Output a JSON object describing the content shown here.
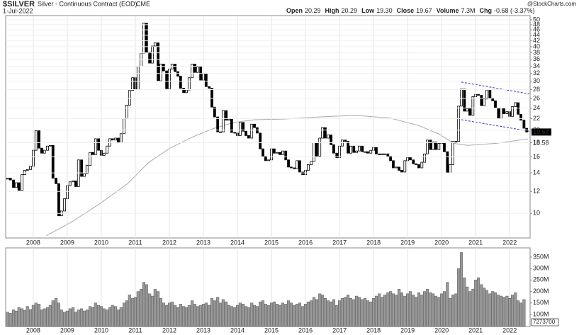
{
  "header": {
    "symbol": "$SILVER",
    "name": "Silver - Continuous Contract (EOD)",
    "exchange": "CME",
    "date": "1-Jul-2022",
    "source": "@StockCharts.com",
    "stats": [
      [
        "Open",
        "20.29"
      ],
      [
        "High",
        "20.29"
      ],
      [
        "Low",
        "19.30"
      ],
      [
        "Close",
        "19.67"
      ],
      [
        "Volume",
        "7.3M"
      ],
      [
        "Chg",
        "-0.68 (-3.37%)"
      ]
    ]
  },
  "chart_data": {
    "type": "candlestick",
    "log_scale": true,
    "grid": true,
    "xlim": [
      2007.19,
      2022.6
    ],
    "xticks": [
      2008,
      2009,
      2010,
      2011,
      2012,
      2013,
      2014,
      2015,
      2016,
      2017,
      2018,
      2019,
      2020,
      2021,
      2022
    ],
    "ylim": [
      8.15,
      51.8
    ],
    "yticks": [
      10,
      12,
      14,
      16,
      18,
      20,
      22,
      24,
      26,
      28,
      30,
      32,
      34,
      36,
      38,
      40,
      42,
      44,
      46,
      48,
      50
    ],
    "x": [
      2007.25,
      2007.33,
      2007.42,
      2007.5,
      2007.58,
      2007.67,
      2007.75,
      2007.83,
      2007.92,
      2008,
      2008.08,
      2008.17,
      2008.25,
      2008.33,
      2008.42,
      2008.5,
      2008.58,
      2008.67,
      2008.75,
      2008.83,
      2008.92,
      2009,
      2009.08,
      2009.17,
      2009.25,
      2009.33,
      2009.42,
      2009.5,
      2009.58,
      2009.67,
      2009.75,
      2009.83,
      2009.92,
      2010,
      2010.08,
      2010.17,
      2010.25,
      2010.33,
      2010.42,
      2010.5,
      2010.58,
      2010.67,
      2010.75,
      2010.83,
      2010.92,
      2011,
      2011.08,
      2011.17,
      2011.25,
      2011.33,
      2011.42,
      2011.5,
      2011.58,
      2011.67,
      2011.75,
      2011.83,
      2011.92,
      2012,
      2012.08,
      2012.17,
      2012.25,
      2012.33,
      2012.42,
      2012.5,
      2012.58,
      2012.67,
      2012.75,
      2012.83,
      2012.92,
      2013,
      2013.08,
      2013.17,
      2013.25,
      2013.33,
      2013.42,
      2013.5,
      2013.58,
      2013.67,
      2013.75,
      2013.83,
      2013.92,
      2014,
      2014.08,
      2014.17,
      2014.25,
      2014.33,
      2014.42,
      2014.5,
      2014.58,
      2014.67,
      2014.75,
      2014.83,
      2014.92,
      2015,
      2015.08,
      2015.17,
      2015.25,
      2015.33,
      2015.42,
      2015.5,
      2015.58,
      2015.67,
      2015.75,
      2015.83,
      2015.92,
      2016,
      2016.08,
      2016.17,
      2016.25,
      2016.33,
      2016.42,
      2016.5,
      2016.58,
      2016.67,
      2016.75,
      2016.83,
      2016.92,
      2017,
      2017.08,
      2017.17,
      2017.25,
      2017.33,
      2017.42,
      2017.5,
      2017.58,
      2017.67,
      2017.75,
      2017.83,
      2017.92,
      2018,
      2018.08,
      2018.17,
      2018.25,
      2018.33,
      2018.42,
      2018.5,
      2018.58,
      2018.67,
      2018.75,
      2018.83,
      2018.92,
      2019,
      2019.08,
      2019.17,
      2019.25,
      2019.33,
      2019.42,
      2019.5,
      2019.58,
      2019.67,
      2019.75,
      2019.83,
      2019.92,
      2020,
      2020.08,
      2020.17,
      2020.25,
      2020.33,
      2020.42,
      2020.5,
      2020.58,
      2020.67,
      2020.75,
      2020.83,
      2020.92,
      2021,
      2021.08,
      2021.17,
      2021.25,
      2021.33,
      2021.42,
      2021.5,
      2021.58,
      2021.67,
      2021.75,
      2021.83,
      2021.92,
      2022,
      2022.08,
      2022.17,
      2022.25,
      2022.33,
      2022.42,
      2022.5
    ],
    "open": [
      13.3,
      13.4,
      13.2,
      12.4,
      12.9,
      12.1,
      13.8,
      14.3,
      14.4,
      14.8,
      16.9,
      19.9,
      17.2,
      16.5,
      16.9,
      17.5,
      17.6,
      13.4,
      12.8,
      9.8,
      10.2,
      11.3,
      12.6,
      13.0,
      13.1,
      12.5,
      15.6,
      13.6,
      13.9,
      14.9,
      16.6,
      16.3,
      18.6,
      16.9,
      16.2,
      16.5,
      17.5,
      18.6,
      18.4,
      18.7,
      18.0,
      19.4,
      22.0,
      24.6,
      27.8,
      30.9,
      28.0,
      34.0,
      37.9,
      48.6,
      38.2,
      34.9,
      40.2,
      41.3,
      30.1,
      34.6,
      32.7,
      28.2,
      33.2,
      34.6,
      32.5,
      31.3,
      28.3,
      27.3,
      27.9,
      30.9,
      34.6,
      32.3,
      33.8,
      30.3,
      31.9,
      28.7,
      28.3,
      24.2,
      22.3,
      19.7,
      19.7,
      23.5,
      21.7,
      21.9,
      19.6,
      19.5,
      19.1,
      21.3,
      19.8,
      19.1,
      18.7,
      21.0,
      20.4,
      19.5,
      17.1,
      16.1,
      15.5,
      15.6,
      17.1,
      16.5,
      16.6,
      16.3,
      16.8,
      15.6,
      14.7,
      14.6,
      14.5,
      15.5,
      14.1,
      13.8,
      14.3,
      15.0,
      15.4,
      18.0,
      16.1,
      18.7,
      20.4,
      18.7,
      19.2,
      17.7,
      16.5,
      15.9,
      17.5,
      18.4,
      18.2,
      16.5,
      17.5,
      16.6,
      16.8,
      17.5,
      16.7,
      16.7,
      16.5,
      16.9,
      17.3,
      16.4,
      16.3,
      16.4,
      16.4,
      16.1,
      15.5,
      14.6,
      14.7,
      14.3,
      14.1,
      15.5,
      15.9,
      15.6,
      15.1,
      15.0,
      14.6,
      15.3,
      16.4,
      18.4,
      17.0,
      18.1,
      17.0,
      17.9,
      18.0,
      16.7,
      14.0,
      15.0,
      18.2,
      18.2,
      24.4,
      28.1,
      23.4,
      23.9,
      22.6,
      26.4,
      26.9,
      26.7,
      24.5,
      25.9,
      27.9,
      26.1,
      25.5,
      24.0,
      22.0,
      24.0,
      22.9,
      23.3,
      22.4,
      24.3,
      25.1,
      22.8,
      21.7,
      20.29
    ],
    "close": [
      13.4,
      13.2,
      12.4,
      12.9,
      12.1,
      13.8,
      14.3,
      14.4,
      14.8,
      16.9,
      19.9,
      17.2,
      16.5,
      16.9,
      17.5,
      17.6,
      13.4,
      12.8,
      9.8,
      10.2,
      11.3,
      12.6,
      13.0,
      13.1,
      12.5,
      15.6,
      13.6,
      13.9,
      14.9,
      16.6,
      16.3,
      18.6,
      16.9,
      16.2,
      16.5,
      17.5,
      18.6,
      18.4,
      18.7,
      18.0,
      19.4,
      22.0,
      24.6,
      27.8,
      30.9,
      28.0,
      34.0,
      37.9,
      48.6,
      38.2,
      34.9,
      40.2,
      41.3,
      30.1,
      34.6,
      32.7,
      28.2,
      33.2,
      34.6,
      32.5,
      31.3,
      28.3,
      27.3,
      27.9,
      30.9,
      34.6,
      32.3,
      33.8,
      30.3,
      31.9,
      28.7,
      28.3,
      24.2,
      22.3,
      19.7,
      19.7,
      23.5,
      21.7,
      21.9,
      19.6,
      19.5,
      19.1,
      21.3,
      19.8,
      19.1,
      18.7,
      21.0,
      20.4,
      19.5,
      17.1,
      16.1,
      15.5,
      15.6,
      17.1,
      16.5,
      16.6,
      16.3,
      16.8,
      15.6,
      14.7,
      14.6,
      14.5,
      15.5,
      14.1,
      13.8,
      14.3,
      15.0,
      15.4,
      18.0,
      16.1,
      18.7,
      20.4,
      18.7,
      19.2,
      17.7,
      16.5,
      15.9,
      17.5,
      18.4,
      18.2,
      16.5,
      17.5,
      16.6,
      16.8,
      17.5,
      16.7,
      16.7,
      16.5,
      16.9,
      17.3,
      16.4,
      16.3,
      16.4,
      16.4,
      16.1,
      15.5,
      14.6,
      14.7,
      14.3,
      14.1,
      15.5,
      15.9,
      15.6,
      15.1,
      15.0,
      14.6,
      15.3,
      16.4,
      18.4,
      17.0,
      18.1,
      17.0,
      17.9,
      18.0,
      16.7,
      14.0,
      15.0,
      18.2,
      18.2,
      24.4,
      28.1,
      23.4,
      23.9,
      22.6,
      26.4,
      26.9,
      26.7,
      24.5,
      25.9,
      27.9,
      26.1,
      25.5,
      24.0,
      22.0,
      24.0,
      22.9,
      23.3,
      22.4,
      24.3,
      25.1,
      22.8,
      21.7,
      20.3,
      19.67
    ],
    "ma": {
      "color": "#aaaaaa",
      "x": [
        2008.38,
        2009.1,
        2009.94,
        2010.77,
        2011.4,
        2012.02,
        2012.65,
        2013.27,
        2013.9,
        2014.52,
        2015.35,
        2016.4,
        2017.44,
        2018.48,
        2019.31,
        2019.94,
        2020.35,
        2020.77,
        2021.6,
        2022.54
      ],
      "values": [
        8.3,
        9.27,
        10.8,
        12.8,
        15.3,
        17.2,
        18.8,
        20.2,
        21.3,
        21.8,
        21.9,
        22.3,
        22.6,
        22.1,
        20.8,
        19.3,
        17.9,
        17.6,
        17.9,
        18.58
      ]
    },
    "channel": {
      "color": "#3333cc",
      "lines": [
        {
          "x": [
            2020.58,
            2022.58
          ],
          "values": [
            29.8,
            27.0
          ]
        },
        {
          "x": [
            2020.58,
            2022.58
          ],
          "values": [
            21.8,
            19.8
          ]
        }
      ]
    },
    "volume": {
      "color": "#999999",
      "ylim": [
        47500000.0,
        390000000.0
      ],
      "yticks": [
        {
          "value": 100000000.0,
          "label": "100M"
        },
        {
          "value": 150000000.0,
          "label": "150M"
        },
        {
          "value": 200000000.0,
          "label": "200M"
        },
        {
          "value": 250000000.0,
          "label": "250M"
        },
        {
          "value": 300000000.0,
          "label": "300M"
        },
        {
          "value": 350000000.0,
          "label": "350M"
        }
      ],
      "values": [
        110000000.0,
        105000000.0,
        120000000.0,
        115000000.0,
        130000000.0,
        125000000.0,
        118000000.0,
        135000000.0,
        122000000.0,
        140000000.0,
        150000000.0,
        145000000.0,
        120000000.0,
        125000000.0,
        130000000.0,
        140000000.0,
        160000000.0,
        170000000.0,
        150000000.0,
        120000000.0,
        110000000.0,
        115000000.0,
        125000000.0,
        130000000.0,
        110000000.0,
        120000000.0,
        125000000.0,
        115000000.0,
        120000000.0,
        135000000.0,
        130000000.0,
        150000000.0,
        140000000.0,
        135000000.0,
        125000000.0,
        120000000.0,
        130000000.0,
        140000000.0,
        135000000.0,
        120000000.0,
        130000000.0,
        150000000.0,
        160000000.0,
        185000000.0,
        170000000.0,
        175000000.0,
        200000000.0,
        210000000.0,
        240000000.0,
        230000000.0,
        190000000.0,
        180000000.0,
        210000000.0,
        200000000.0,
        170000000.0,
        150000000.0,
        140000000.0,
        150000000.0,
        155000000.0,
        140000000.0,
        130000000.0,
        145000000.0,
        135000000.0,
        130000000.0,
        140000000.0,
        160000000.0,
        145000000.0,
        135000000.0,
        140000000.0,
        145000000.0,
        150000000.0,
        140000000.0,
        170000000.0,
        160000000.0,
        175000000.0,
        150000000.0,
        165000000.0,
        155000000.0,
        140000000.0,
        135000000.0,
        130000000.0,
        140000000.0,
        150000000.0,
        145000000.0,
        135000000.0,
        130000000.0,
        150000000.0,
        140000000.0,
        135000000.0,
        155000000.0,
        160000000.0,
        145000000.0,
        140000000.0,
        150000000.0,
        155000000.0,
        145000000.0,
        140000000.0,
        150000000.0,
        145000000.0,
        160000000.0,
        150000000.0,
        140000000.0,
        145000000.0,
        150000000.0,
        135000000.0,
        145000000.0,
        155000000.0,
        160000000.0,
        175000000.0,
        165000000.0,
        190000000.0,
        185000000.0,
        170000000.0,
        160000000.0,
        155000000.0,
        165000000.0,
        140000000.0,
        160000000.0,
        170000000.0,
        175000000.0,
        185000000.0,
        170000000.0,
        165000000.0,
        180000000.0,
        175000000.0,
        165000000.0,
        170000000.0,
        160000000.0,
        155000000.0,
        170000000.0,
        180000000.0,
        190000000.0,
        175000000.0,
        185000000.0,
        195000000.0,
        200000000.0,
        190000000.0,
        185000000.0,
        210000000.0,
        195000000.0,
        180000000.0,
        190000000.0,
        200000000.0,
        185000000.0,
        175000000.0,
        195000000.0,
        185000000.0,
        200000000.0,
        210000000.0,
        195000000.0,
        190000000.0,
        180000000.0,
        175000000.0,
        190000000.0,
        200000000.0,
        240000000.0,
        170000000.0,
        185000000.0,
        190000000.0,
        300000000.0,
        370000000.0,
        260000000.0,
        220000000.0,
        200000000.0,
        210000000.0,
        250000000.0,
        260000000.0,
        230000000.0,
        215000000.0,
        205000000.0,
        190000000.0,
        200000000.0,
        195000000.0,
        185000000.0,
        180000000.0,
        175000000.0,
        180000000.0,
        170000000.0,
        185000000.0,
        195000000.0,
        160000000.0,
        150000000.0,
        165000000.0,
        7273700
      ]
    }
  }
}
